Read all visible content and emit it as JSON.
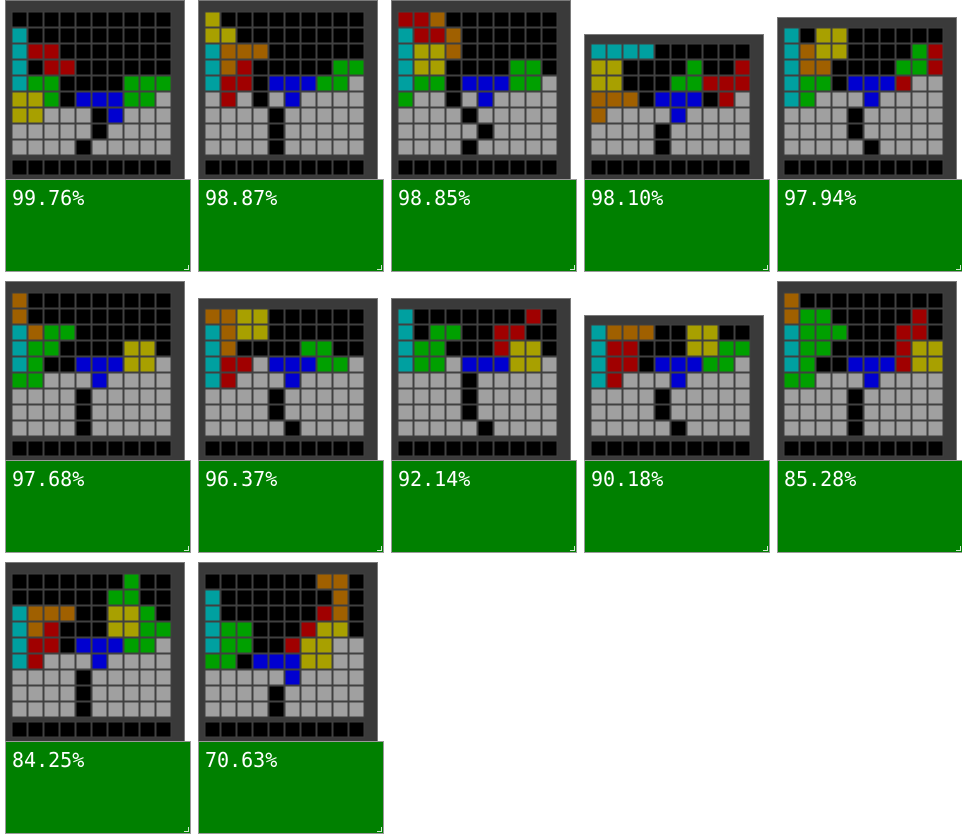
{
  "colors": {
    "I": "#00a0a0",
    "O": "#a8a000",
    "T": "#00a000",
    "S": "#a00000",
    "Z": "#0000d0",
    "L": "#a06000",
    "J": "#0000d0",
    "filled": "#a0a0a0",
    "empty": "#000000",
    "grid": "#404040",
    "score_bg": "#008000",
    "score_text": "#ffffff"
  },
  "cells": [
    {
      "score": "99.76%"
    },
    {
      "score": "98.87%"
    },
    {
      "score": "98.85%"
    },
    {
      "score": "98.10%"
    },
    {
      "score": "97.94%"
    },
    {
      "score": "97.68%"
    },
    {
      "score": "96.37%"
    },
    {
      "score": "92.14%"
    },
    {
      "score": "90.18%"
    },
    {
      "score": "85.28%"
    },
    {
      "score": "84.25%"
    },
    {
      "score": "70.63%"
    }
  ]
}
